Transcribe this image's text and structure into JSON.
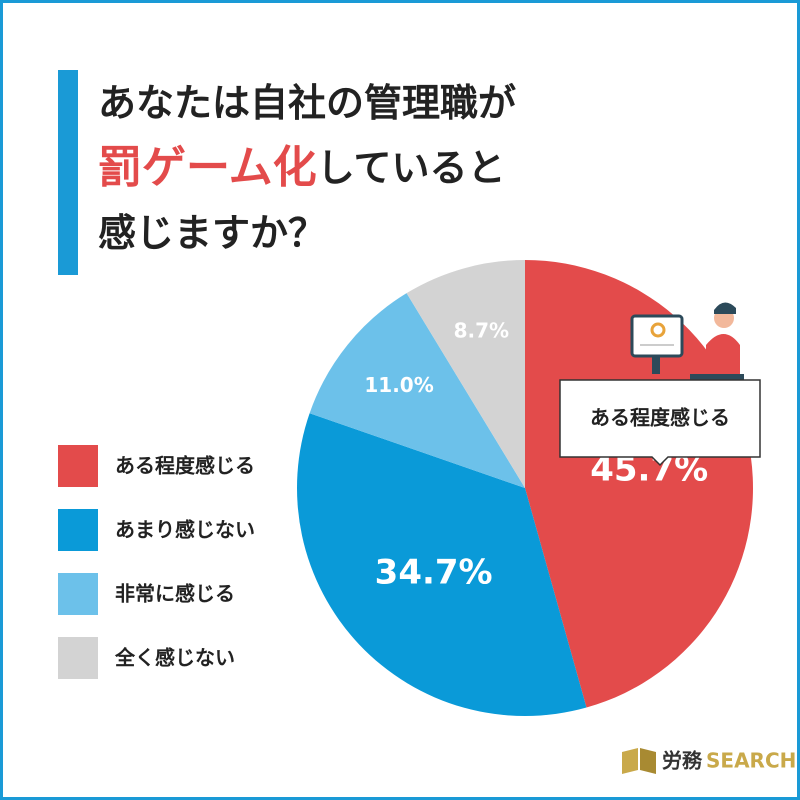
{
  "chart_data": {
    "type": "pie",
    "title_lines": [
      [
        "あなたは自社の管理職が"
      ],
      [
        "罰ゲーム化",
        "していると"
      ],
      [
        "感じますか？"
      ]
    ],
    "title_highlight_color": "#e34b4b",
    "categories": [
      "ある程度感じる",
      "あまり感じない",
      "非常に感じる",
      "全く感じない"
    ],
    "values": [
      45.7,
      34.7,
      11.0,
      8.7
    ],
    "value_labels": [
      "45.7%",
      "34.7%",
      "11.0%",
      "8.7%"
    ],
    "colors": [
      "#e34b4b",
      "#0a9ad8",
      "#6cc1ea",
      "#d3d3d3"
    ],
    "annotation": "ある程度感じる",
    "logo": [
      "労務",
      "SEARCH"
    ]
  }
}
